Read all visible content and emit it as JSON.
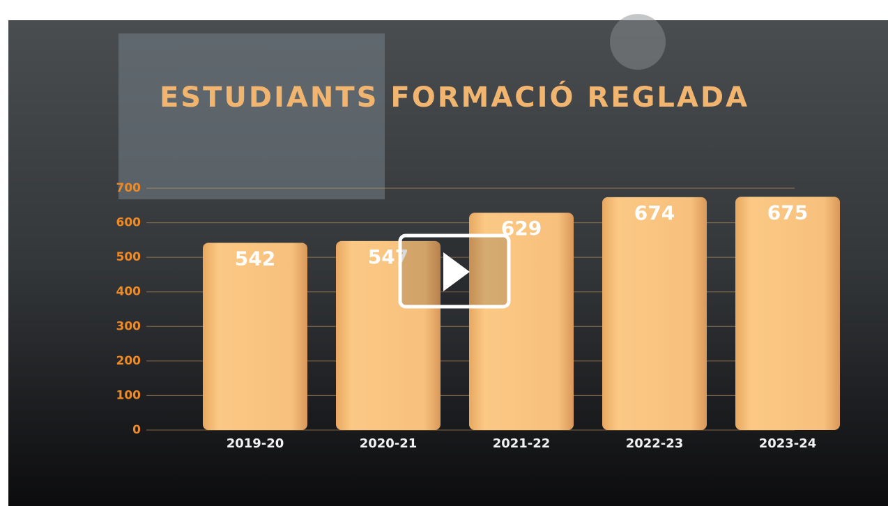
{
  "chart_data": {
    "type": "bar",
    "title": "ESTUDIANTS FORMACIÓ REGLADA",
    "categories": [
      "2019-20",
      "2020-21",
      "2021-22",
      "2022-23",
      "2023-24"
    ],
    "values": [
      542,
      547,
      629,
      674,
      675
    ],
    "color": "#f7c07c",
    "ylim": [
      0,
      700
    ],
    "yticks": [
      0,
      100,
      200,
      300,
      400,
      500,
      600,
      700
    ],
    "grid": true
  }
}
